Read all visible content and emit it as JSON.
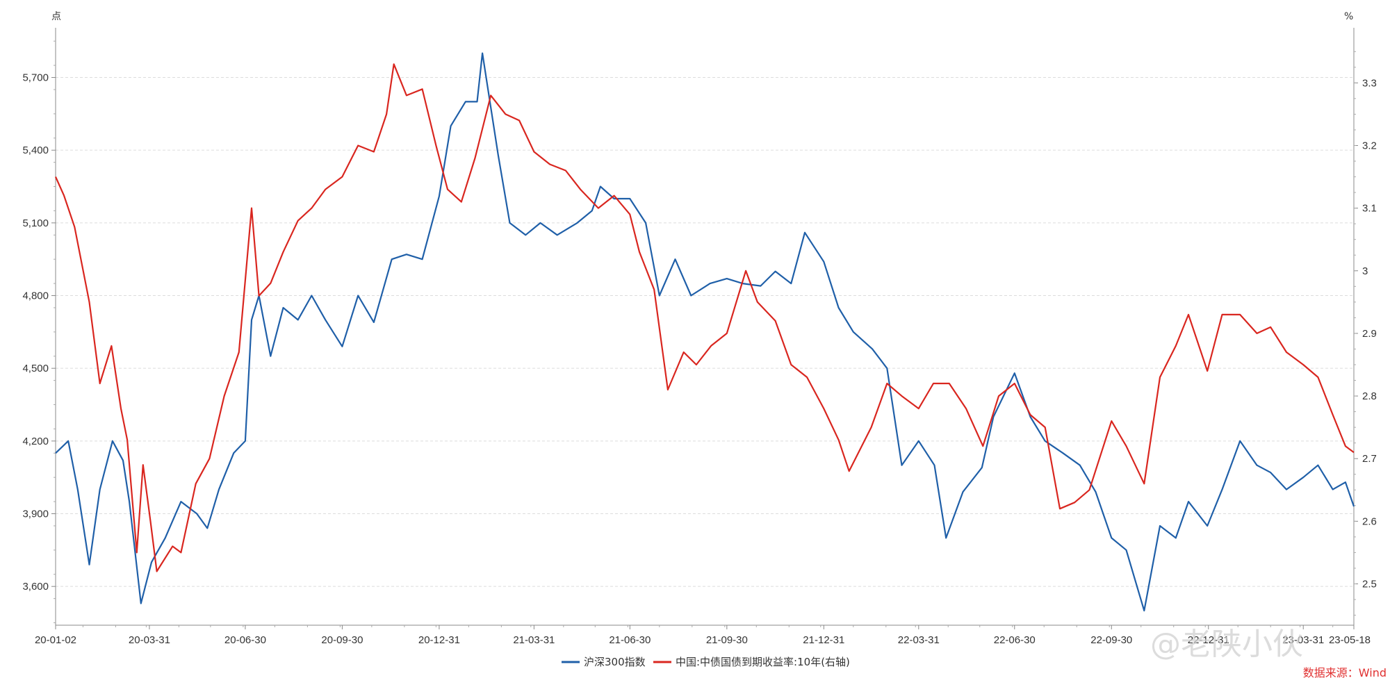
{
  "chart_data": {
    "type": "line",
    "left_axis_unit": "点",
    "right_axis_unit": "%",
    "x_tick_labels": [
      "20-01-02",
      "20-03-31",
      "20-06-30",
      "20-09-30",
      "20-12-31",
      "21-03-31",
      "21-06-30",
      "21-09-30",
      "21-12-31",
      "22-03-31",
      "22-06-30",
      "22-09-30",
      "22-12-31",
      "23-03-31",
      "23-05-18"
    ],
    "x_range": [
      "2020-01-02",
      "2023-05-18"
    ],
    "y_left_ticks": [
      3600,
      3900,
      4200,
      4500,
      4800,
      5100,
      5400,
      5700
    ],
    "y_left_tick_labels": [
      "3,600",
      "3,900",
      "4,200",
      "4,500",
      "4,800",
      "5,100",
      "5,400",
      "5,700"
    ],
    "y_left_range": [
      3440,
      5905
    ],
    "y_right_ticks": [
      2.5,
      2.6,
      2.7,
      2.8,
      2.9,
      3.0,
      3.1,
      3.2,
      3.3
    ],
    "y_right_tick_labels": [
      "2.5",
      "2.6",
      "2.7",
      "2.8",
      "2.9",
      "3",
      "3.1",
      "3.2",
      "3.3"
    ],
    "y_right_range": [
      2.434,
      3.388
    ],
    "grid": "horizontal dashed",
    "legend_position": "bottom-center",
    "series": [
      {
        "name": "沪深300指数",
        "axis": "left",
        "color": "#1f5fa8",
        "points": [
          [
            "2020-01-02",
            4150
          ],
          [
            "2020-01-14",
            4200
          ],
          [
            "2020-01-23",
            4000
          ],
          [
            "2020-02-03",
            3690
          ],
          [
            "2020-02-13",
            4000
          ],
          [
            "2020-02-25",
            4200
          ],
          [
            "2020-03-06",
            4120
          ],
          [
            "2020-03-12",
            3950
          ],
          [
            "2020-03-23",
            3530
          ],
          [
            "2020-04-02",
            3700
          ],
          [
            "2020-04-15",
            3800
          ],
          [
            "2020-04-30",
            3950
          ],
          [
            "2020-05-15",
            3900
          ],
          [
            "2020-05-25",
            3840
          ],
          [
            "2020-06-05",
            4000
          ],
          [
            "2020-06-19",
            4150
          ],
          [
            "2020-06-30",
            4200
          ],
          [
            "2020-07-06",
            4700
          ],
          [
            "2020-07-13",
            4800
          ],
          [
            "2020-07-24",
            4550
          ],
          [
            "2020-08-05",
            4750
          ],
          [
            "2020-08-19",
            4700
          ],
          [
            "2020-09-01",
            4800
          ],
          [
            "2020-09-14",
            4700
          ],
          [
            "2020-09-30",
            4590
          ],
          [
            "2020-10-15",
            4800
          ],
          [
            "2020-10-30",
            4690
          ],
          [
            "2020-11-16",
            4950
          ],
          [
            "2020-11-30",
            4970
          ],
          [
            "2020-12-15",
            4950
          ],
          [
            "2020-12-31",
            5210
          ],
          [
            "2021-01-11",
            5500
          ],
          [
            "2021-01-25",
            5600
          ],
          [
            "2021-02-05",
            5600
          ],
          [
            "2021-02-10",
            5800
          ],
          [
            "2021-02-25",
            5380
          ],
          [
            "2021-03-08",
            5100
          ],
          [
            "2021-03-23",
            5050
          ],
          [
            "2021-04-06",
            5100
          ],
          [
            "2021-04-22",
            5050
          ],
          [
            "2021-05-11",
            5100
          ],
          [
            "2021-05-25",
            5150
          ],
          [
            "2021-06-02",
            5250
          ],
          [
            "2021-06-15",
            5200
          ],
          [
            "2021-06-30",
            5200
          ],
          [
            "2021-07-15",
            5100
          ],
          [
            "2021-07-28",
            4800
          ],
          [
            "2021-08-12",
            4950
          ],
          [
            "2021-08-27",
            4800
          ],
          [
            "2021-09-14",
            4850
          ],
          [
            "2021-09-30",
            4870
          ],
          [
            "2021-10-15",
            4850
          ],
          [
            "2021-11-01",
            4840
          ],
          [
            "2021-11-15",
            4900
          ],
          [
            "2021-11-30",
            4850
          ],
          [
            "2021-12-13",
            5060
          ],
          [
            "2021-12-31",
            4940
          ],
          [
            "2022-01-14",
            4750
          ],
          [
            "2022-01-28",
            4650
          ],
          [
            "2022-02-15",
            4580
          ],
          [
            "2022-03-01",
            4500
          ],
          [
            "2022-03-15",
            4100
          ],
          [
            "2022-03-31",
            4200
          ],
          [
            "2022-04-15",
            4100
          ],
          [
            "2022-04-26",
            3800
          ],
          [
            "2022-05-12",
            3990
          ],
          [
            "2022-05-30",
            4090
          ],
          [
            "2022-06-10",
            4300
          ],
          [
            "2022-06-30",
            4480
          ],
          [
            "2022-07-15",
            4300
          ],
          [
            "2022-07-29",
            4200
          ],
          [
            "2022-08-15",
            4150
          ],
          [
            "2022-08-31",
            4100
          ],
          [
            "2022-09-15",
            3990
          ],
          [
            "2022-09-30",
            3800
          ],
          [
            "2022-10-14",
            3750
          ],
          [
            "2022-10-31",
            3500
          ],
          [
            "2022-11-15",
            3850
          ],
          [
            "2022-11-30",
            3800
          ],
          [
            "2022-12-12",
            3950
          ],
          [
            "2022-12-30",
            3850
          ],
          [
            "2023-01-13",
            4000
          ],
          [
            "2023-01-30",
            4200
          ],
          [
            "2023-02-15",
            4100
          ],
          [
            "2023-02-28",
            4070
          ],
          [
            "2023-03-15",
            4000
          ],
          [
            "2023-03-31",
            4050
          ],
          [
            "2023-04-14",
            4100
          ],
          [
            "2023-04-28",
            4000
          ],
          [
            "2023-05-10",
            4030
          ],
          [
            "2023-05-18",
            3930
          ]
        ]
      },
      {
        "name": "中国:中债国债到期收益率:10年(右轴)",
        "axis": "right",
        "color": "#d9261f",
        "points": [
          [
            "2020-01-02",
            3.15
          ],
          [
            "2020-01-10",
            3.12
          ],
          [
            "2020-01-20",
            3.07
          ],
          [
            "2020-02-03",
            2.95
          ],
          [
            "2020-02-13",
            2.82
          ],
          [
            "2020-02-24",
            2.88
          ],
          [
            "2020-03-04",
            2.78
          ],
          [
            "2020-03-10",
            2.73
          ],
          [
            "2020-03-19",
            2.55
          ],
          [
            "2020-03-25",
            2.69
          ],
          [
            "2020-04-01",
            2.6
          ],
          [
            "2020-04-07",
            2.52
          ],
          [
            "2020-04-22",
            2.56
          ],
          [
            "2020-04-30",
            2.55
          ],
          [
            "2020-05-14",
            2.66
          ],
          [
            "2020-05-27",
            2.7
          ],
          [
            "2020-06-10",
            2.8
          ],
          [
            "2020-06-24",
            2.87
          ],
          [
            "2020-07-06",
            3.1
          ],
          [
            "2020-07-13",
            2.96
          ],
          [
            "2020-07-24",
            2.98
          ],
          [
            "2020-08-05",
            3.03
          ],
          [
            "2020-08-19",
            3.08
          ],
          [
            "2020-09-01",
            3.1
          ],
          [
            "2020-09-14",
            3.13
          ],
          [
            "2020-09-30",
            3.15
          ],
          [
            "2020-10-15",
            3.2
          ],
          [
            "2020-10-30",
            3.19
          ],
          [
            "2020-11-11",
            3.25
          ],
          [
            "2020-11-18",
            3.33
          ],
          [
            "2020-11-30",
            3.28
          ],
          [
            "2020-12-15",
            3.29
          ],
          [
            "2020-12-28",
            3.2
          ],
          [
            "2021-01-08",
            3.13
          ],
          [
            "2021-01-21",
            3.11
          ],
          [
            "2021-02-03",
            3.18
          ],
          [
            "2021-02-18",
            3.28
          ],
          [
            "2021-03-04",
            3.25
          ],
          [
            "2021-03-17",
            3.24
          ],
          [
            "2021-03-31",
            3.19
          ],
          [
            "2021-04-15",
            3.17
          ],
          [
            "2021-04-30",
            3.16
          ],
          [
            "2021-05-14",
            3.13
          ],
          [
            "2021-05-31",
            3.1
          ],
          [
            "2021-06-15",
            3.12
          ],
          [
            "2021-06-30",
            3.09
          ],
          [
            "2021-07-09",
            3.03
          ],
          [
            "2021-07-23",
            2.97
          ],
          [
            "2021-08-05",
            2.81
          ],
          [
            "2021-08-20",
            2.87
          ],
          [
            "2021-09-01",
            2.85
          ],
          [
            "2021-09-15",
            2.88
          ],
          [
            "2021-09-30",
            2.9
          ],
          [
            "2021-10-18",
            3.0
          ],
          [
            "2021-10-29",
            2.95
          ],
          [
            "2021-11-15",
            2.92
          ],
          [
            "2021-11-30",
            2.85
          ],
          [
            "2021-12-15",
            2.83
          ],
          [
            "2021-12-31",
            2.78
          ],
          [
            "2022-01-14",
            2.73
          ],
          [
            "2022-01-24",
            2.68
          ],
          [
            "2022-02-14",
            2.75
          ],
          [
            "2022-03-01",
            2.82
          ],
          [
            "2022-03-15",
            2.8
          ],
          [
            "2022-03-31",
            2.78
          ],
          [
            "2022-04-14",
            2.82
          ],
          [
            "2022-04-29",
            2.82
          ],
          [
            "2022-05-15",
            2.78
          ],
          [
            "2022-05-31",
            2.72
          ],
          [
            "2022-06-15",
            2.8
          ],
          [
            "2022-06-30",
            2.82
          ],
          [
            "2022-07-15",
            2.77
          ],
          [
            "2022-07-29",
            2.75
          ],
          [
            "2022-08-12",
            2.62
          ],
          [
            "2022-08-26",
            2.63
          ],
          [
            "2022-09-09",
            2.65
          ],
          [
            "2022-09-30",
            2.76
          ],
          [
            "2022-10-14",
            2.72
          ],
          [
            "2022-10-31",
            2.66
          ],
          [
            "2022-11-15",
            2.83
          ],
          [
            "2022-11-30",
            2.88
          ],
          [
            "2022-12-12",
            2.93
          ],
          [
            "2022-12-30",
            2.84
          ],
          [
            "2023-01-13",
            2.93
          ],
          [
            "2023-01-30",
            2.93
          ],
          [
            "2023-02-15",
            2.9
          ],
          [
            "2023-02-28",
            2.91
          ],
          [
            "2023-03-15",
            2.87
          ],
          [
            "2023-03-31",
            2.85
          ],
          [
            "2023-04-14",
            2.83
          ],
          [
            "2023-04-28",
            2.77
          ],
          [
            "2023-05-10",
            2.72
          ],
          [
            "2023-05-18",
            2.71
          ]
        ]
      }
    ],
    "source_note": "数据来源：Wind",
    "watermark": "@老陕小伙"
  }
}
